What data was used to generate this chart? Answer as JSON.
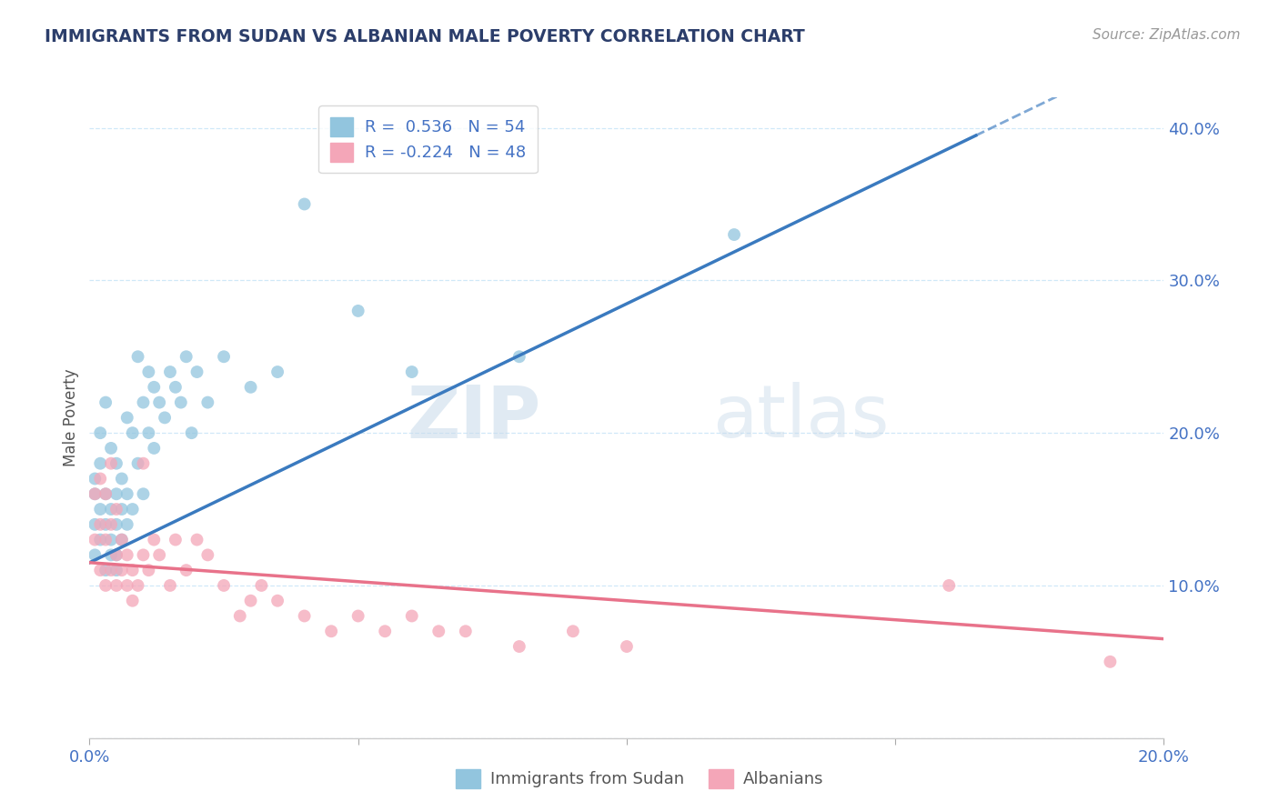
{
  "title": "IMMIGRANTS FROM SUDAN VS ALBANIAN MALE POVERTY CORRELATION CHART",
  "source": "Source: ZipAtlas.com",
  "ylabel": "Male Poverty",
  "r_sudan": 0.536,
  "n_sudan": 54,
  "r_albanian": -0.224,
  "n_albanian": 48,
  "color_sudan": "#92c5de",
  "color_albanian": "#f4a6b8",
  "line_color_sudan": "#3a7abf",
  "line_color_albanian": "#e8728a",
  "background_color": "#ffffff",
  "grid_color": "#d0e8f8",
  "x_min": 0.0,
  "x_max": 0.2,
  "y_min": 0.0,
  "y_max": 0.42,
  "sudan_x": [
    0.001,
    0.001,
    0.001,
    0.001,
    0.002,
    0.002,
    0.002,
    0.002,
    0.003,
    0.003,
    0.003,
    0.003,
    0.004,
    0.004,
    0.004,
    0.004,
    0.005,
    0.005,
    0.005,
    0.005,
    0.005,
    0.006,
    0.006,
    0.006,
    0.007,
    0.007,
    0.007,
    0.008,
    0.008,
    0.009,
    0.009,
    0.01,
    0.01,
    0.011,
    0.011,
    0.012,
    0.012,
    0.013,
    0.014,
    0.015,
    0.016,
    0.017,
    0.018,
    0.019,
    0.02,
    0.022,
    0.025,
    0.03,
    0.035,
    0.04,
    0.05,
    0.06,
    0.08,
    0.12
  ],
  "sudan_y": [
    0.12,
    0.14,
    0.16,
    0.17,
    0.13,
    0.15,
    0.18,
    0.2,
    0.11,
    0.14,
    0.16,
    0.22,
    0.12,
    0.13,
    0.15,
    0.19,
    0.11,
    0.12,
    0.14,
    0.16,
    0.18,
    0.13,
    0.15,
    0.17,
    0.14,
    0.16,
    0.21,
    0.15,
    0.2,
    0.18,
    0.25,
    0.16,
    0.22,
    0.2,
    0.24,
    0.19,
    0.23,
    0.22,
    0.21,
    0.24,
    0.23,
    0.22,
    0.25,
    0.2,
    0.24,
    0.22,
    0.25,
    0.23,
    0.24,
    0.35,
    0.28,
    0.24,
    0.25,
    0.33
  ],
  "albanian_x": [
    0.001,
    0.001,
    0.002,
    0.002,
    0.002,
    0.003,
    0.003,
    0.003,
    0.004,
    0.004,
    0.004,
    0.005,
    0.005,
    0.005,
    0.006,
    0.006,
    0.007,
    0.007,
    0.008,
    0.008,
    0.009,
    0.01,
    0.01,
    0.011,
    0.012,
    0.013,
    0.015,
    0.016,
    0.018,
    0.02,
    0.022,
    0.025,
    0.028,
    0.03,
    0.032,
    0.035,
    0.04,
    0.045,
    0.05,
    0.055,
    0.06,
    0.065,
    0.07,
    0.08,
    0.09,
    0.1,
    0.16,
    0.19
  ],
  "albanian_y": [
    0.13,
    0.16,
    0.11,
    0.14,
    0.17,
    0.1,
    0.13,
    0.16,
    0.11,
    0.14,
    0.18,
    0.1,
    0.12,
    0.15,
    0.11,
    0.13,
    0.1,
    0.12,
    0.09,
    0.11,
    0.1,
    0.12,
    0.18,
    0.11,
    0.13,
    0.12,
    0.1,
    0.13,
    0.11,
    0.13,
    0.12,
    0.1,
    0.08,
    0.09,
    0.1,
    0.09,
    0.08,
    0.07,
    0.08,
    0.07,
    0.08,
    0.07,
    0.07,
    0.06,
    0.07,
    0.06,
    0.1,
    0.05
  ],
  "yticks": [
    0.0,
    0.1,
    0.2,
    0.3,
    0.4
  ],
  "ytick_labels": [
    "",
    "10.0%",
    "20.0%",
    "30.0%",
    "40.0%"
  ],
  "xticks": [
    0.0,
    0.05,
    0.1,
    0.15,
    0.2
  ],
  "xtick_labels": [
    "0.0%",
    "",
    "",
    "",
    "20.0%"
  ],
  "title_color": "#2c3e6b",
  "tick_color": "#4472c4",
  "sudan_line_x0": 0.0,
  "sudan_line_y0": 0.115,
  "sudan_line_x1": 0.165,
  "sudan_line_y1": 0.395,
  "albanian_line_x0": 0.0,
  "albanian_line_y0": 0.115,
  "albanian_line_x1": 0.2,
  "albanian_line_y1": 0.065
}
